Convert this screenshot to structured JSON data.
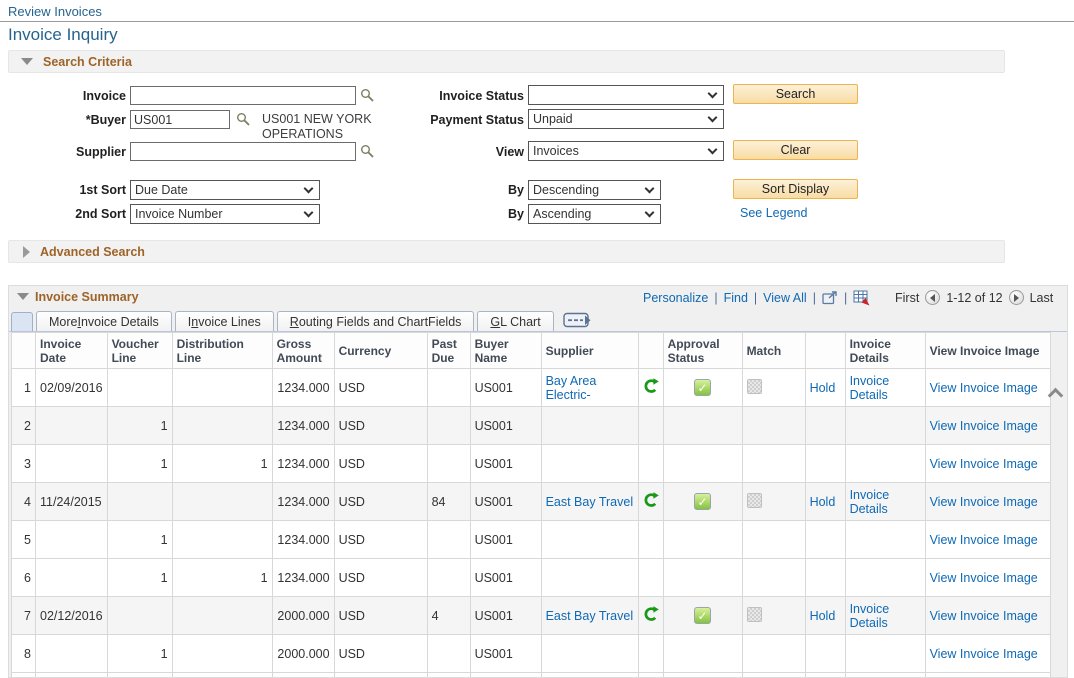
{
  "page": {
    "breadcrumb": "Review Invoices",
    "title": "Invoice Inquiry"
  },
  "search": {
    "section_title": "Search Criteria",
    "invoice_label": "Invoice",
    "invoice_value": "",
    "buyer_label": "*Buyer",
    "buyer_value": "US001",
    "buyer_description": "US001 NEW YORK OPERATIONS",
    "supplier_label": "Supplier",
    "supplier_value": "",
    "invoice_status_label": "Invoice Status",
    "invoice_status_value": "",
    "payment_status_label": "Payment Status",
    "payment_status_value": "Unpaid",
    "view_label": "View",
    "view_value": "Invoices",
    "sort1_label": "1st Sort",
    "sort1_value": "Due Date",
    "sort1_by_label": "By",
    "sort1_by_value": "Descending",
    "sort2_label": "2nd Sort",
    "sort2_value": "Invoice Number",
    "sort2_by_label": "By",
    "sort2_by_value": "Ascending",
    "search_button": "Search",
    "clear_button": "Clear",
    "sort_display_button": "Sort Display",
    "see_legend_link": "See Legend"
  },
  "advanced": {
    "section_title": "Advanced Search"
  },
  "summary": {
    "section_title": "Invoice Summary",
    "toolbar": {
      "personalize": "Personalize",
      "find": "Find",
      "view_all": "View All",
      "separator": "|"
    },
    "pagination": {
      "first": "First",
      "range": "1-12 of 12",
      "last": "Last"
    },
    "tabs": [
      {
        "pre": "More ",
        "key": "I",
        "post": "nvoice Details"
      },
      {
        "pre": "I",
        "key": "n",
        "post": "voice Lines"
      },
      {
        "pre": "",
        "key": "R",
        "post": "outing Fields and ChartFields"
      },
      {
        "pre": "",
        "key": "G",
        "post": "L Chart"
      }
    ],
    "table": {
      "headers": {
        "row_number": "",
        "invoice_date": "Invoice Date",
        "voucher_line": "Voucher Line",
        "distribution_line": "Distribution Line",
        "gross_amount": "Gross Amount",
        "currency": "Currency",
        "past_due": "Past Due",
        "buyer_name": "Buyer Name",
        "supplier": "Supplier",
        "status": "",
        "approval_status": "Approval Status",
        "match": "Match",
        "hold": "",
        "invoice_details": "Invoice Details",
        "view_invoice_image": "View Invoice Image"
      },
      "rows": [
        {
          "num": "1",
          "invoice_date": "02/09/2016",
          "voucher_line": "",
          "distribution_line": "",
          "gross_amount": "1234.000",
          "currency": "USD",
          "past_due": "",
          "buyer_name": "US001",
          "supplier": "Bay Area Electric-",
          "has_status_icons": true,
          "hold": "Hold",
          "invoice_details": "Invoice Details",
          "view_invoice_image": "View Invoice Image",
          "shaded": false
        },
        {
          "num": "2",
          "invoice_date": "",
          "voucher_line": "1",
          "distribution_line": "",
          "gross_amount": "1234.000",
          "currency": "USD",
          "past_due": "",
          "buyer_name": "US001",
          "supplier": "",
          "has_status_icons": false,
          "hold": "",
          "invoice_details": "",
          "view_invoice_image": "View Invoice Image",
          "shaded": true
        },
        {
          "num": "3",
          "invoice_date": "",
          "voucher_line": "1",
          "distribution_line": "1",
          "gross_amount": "1234.000",
          "currency": "USD",
          "past_due": "",
          "buyer_name": "US001",
          "supplier": "",
          "has_status_icons": false,
          "hold": "",
          "invoice_details": "",
          "view_invoice_image": "View Invoice Image",
          "shaded": false
        },
        {
          "num": "4",
          "invoice_date": "11/24/2015",
          "voucher_line": "",
          "distribution_line": "",
          "gross_amount": "1234.000",
          "currency": "USD",
          "past_due": "84",
          "buyer_name": "US001",
          "supplier": "East Bay Travel",
          "has_status_icons": true,
          "hold": "Hold",
          "invoice_details": "Invoice Details",
          "view_invoice_image": "View Invoice Image",
          "shaded": true
        },
        {
          "num": "5",
          "invoice_date": "",
          "voucher_line": "1",
          "distribution_line": "",
          "gross_amount": "1234.000",
          "currency": "USD",
          "past_due": "",
          "buyer_name": "US001",
          "supplier": "",
          "has_status_icons": false,
          "hold": "",
          "invoice_details": "",
          "view_invoice_image": "View Invoice Image",
          "shaded": false
        },
        {
          "num": "6",
          "invoice_date": "",
          "voucher_line": "1",
          "distribution_line": "1",
          "gross_amount": "1234.000",
          "currency": "USD",
          "past_due": "",
          "buyer_name": "US001",
          "supplier": "",
          "has_status_icons": false,
          "hold": "",
          "invoice_details": "",
          "view_invoice_image": "View Invoice Image",
          "shaded": false
        },
        {
          "num": "7",
          "invoice_date": "02/12/2016",
          "voucher_line": "",
          "distribution_line": "",
          "gross_amount": "2000.000",
          "currency": "USD",
          "past_due": "4",
          "buyer_name": "US001",
          "supplier": "East Bay Travel",
          "has_status_icons": true,
          "hold": "Hold",
          "invoice_details": "Invoice Details",
          "view_invoice_image": "View Invoice Image",
          "shaded": true
        },
        {
          "num": "8",
          "invoice_date": "",
          "voucher_line": "1",
          "distribution_line": "",
          "gross_amount": "2000.000",
          "currency": "USD",
          "past_due": "",
          "buyer_name": "US001",
          "supplier": "",
          "has_status_icons": false,
          "hold": "",
          "invoice_details": "",
          "view_invoice_image": "View Invoice Image",
          "shaded": false
        }
      ]
    }
  },
  "icons": {
    "section_expanded": "triangle-down",
    "section_collapsed": "triangle-right",
    "lookup": "magnifier",
    "dropdown": "chevron-down",
    "popup_window": "window-with-arrow",
    "download_grid": "grid-with-red-arrow",
    "show_all_columns": "dashes-with-right-arrow",
    "prev_page": "circle-left-arrow",
    "next_page": "circle-right-arrow",
    "refresh": "green-circular-arrow",
    "approved": "green-checkbox",
    "match_unavailable": "gray-dithered-box",
    "scroll_up": "chevron-up"
  },
  "colors": {
    "link_blue": "#0f69b4",
    "title_blue": "#26648e",
    "section_brown": "#9e6327",
    "button_bg": "#fbe3b8",
    "button_border": "#edb34f",
    "approved_green": "#84c43e",
    "refresh_green": "#189a18",
    "row_shade": "#f5f5f5"
  }
}
